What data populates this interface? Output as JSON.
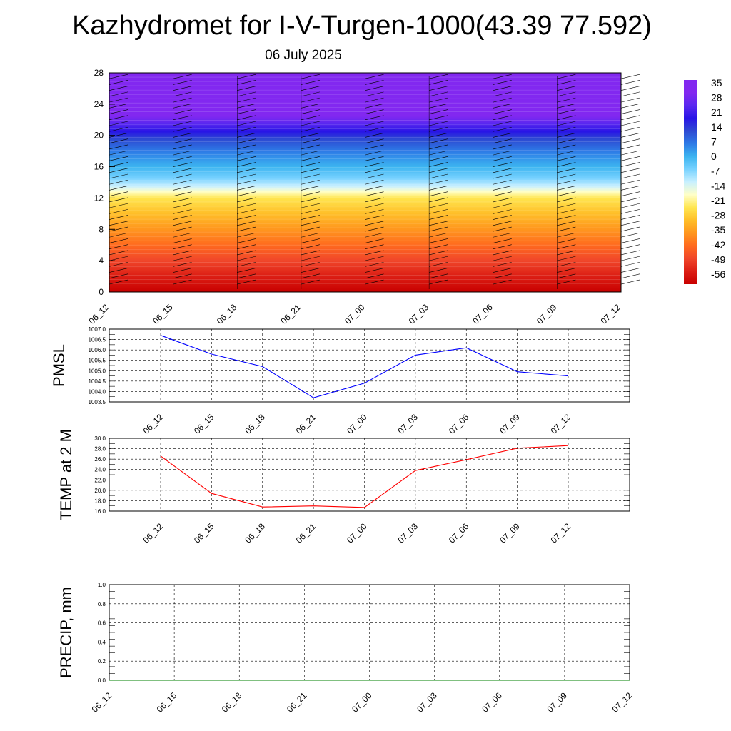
{
  "title": "Kazhydromet for I-V-Turgen-1000(43.39 77.592)",
  "subtitle": "06 July 2025",
  "chart_data": [
    {
      "type": "heatmap",
      "description_note": "",
      "x_tick_labels": [
        "06_12",
        "06_15",
        "06_18",
        "06_21",
        "07_00",
        "07_03",
        "07_06",
        "07_09",
        "07_12"
      ],
      "y_tick_labels": [
        "0",
        "4",
        "8",
        "12",
        "16",
        "20",
        "24",
        "28"
      ],
      "ylim": [
        0,
        28
      ],
      "colorbar_labels": [
        "35",
        "28",
        "21",
        "14",
        "7",
        "0",
        "-7",
        "-14",
        "-21",
        "-28",
        "-35",
        "-42",
        "-49",
        "-56"
      ],
      "vertical_profile": {
        "heights": [
          0,
          2,
          4,
          6,
          8,
          10,
          12,
          12.8,
          13.5,
          14.5,
          16,
          18,
          19.5,
          20.5,
          21.5,
          22.5,
          28
        ],
        "colors": [
          "#c80000",
          "#dc1e14",
          "#f0462a",
          "#ff6a1e",
          "#ff961e",
          "#ffbe28",
          "#ffe650",
          "#ffffc8",
          "#c8f0ff",
          "#78d2ff",
          "#3cb4f0",
          "#2d7ae6",
          "#2d4ad2",
          "#2814e6",
          "#5a28f0",
          "#8228f0",
          "#8228f0"
        ]
      },
      "wind_barbs": true,
      "grid": false
    },
    {
      "type": "line",
      "ylabel": "PMSL",
      "categories": [
        "06_12",
        "06_15",
        "06_18",
        "06_21",
        "07_00",
        "07_03",
        "07_06",
        "07_09",
        "07_12"
      ],
      "values": [
        1006.7,
        1005.8,
        1005.2,
        1003.7,
        1004.4,
        1005.75,
        1006.1,
        1004.95,
        1004.75
      ],
      "ylim": [
        1003.5,
        1007.0
      ],
      "y_tick_labels": [
        "1003.5",
        "1004.0",
        "1004.5",
        "1005.0",
        "1005.5",
        "1006.0",
        "1006.5",
        "1007.0"
      ],
      "color": "#0000ff",
      "grid": true
    },
    {
      "type": "line",
      "ylabel": "TEMP at 2 M",
      "categories": [
        "06_12",
        "06_15",
        "06_18",
        "06_21",
        "07_00",
        "07_03",
        "07_06",
        "07_09",
        "07_12"
      ],
      "values": [
        26.6,
        19.4,
        16.8,
        17.0,
        16.7,
        23.8,
        25.9,
        28.1,
        28.6
      ],
      "ylim": [
        16.0,
        30.0
      ],
      "y_tick_labels": [
        "16.0",
        "18.0",
        "20.0",
        "22.0",
        "24.0",
        "26.0",
        "28.0",
        "30.0"
      ],
      "color": "#ff0000",
      "grid": true
    },
    {
      "type": "line",
      "ylabel": "PRECIP, mm",
      "categories": [
        "06_12",
        "06_15",
        "06_18",
        "06_21",
        "07_00",
        "07_03",
        "07_06",
        "07_09",
        "07_12"
      ],
      "values": [
        0,
        0,
        0,
        0,
        0,
        0,
        0,
        0,
        0
      ],
      "ylim": [
        0.0,
        1.0
      ],
      "y_tick_labels": [
        "0.0",
        "0.2",
        "0.4",
        "0.6",
        "0.8",
        "1.0"
      ],
      "color": "#008000",
      "grid": true
    }
  ]
}
